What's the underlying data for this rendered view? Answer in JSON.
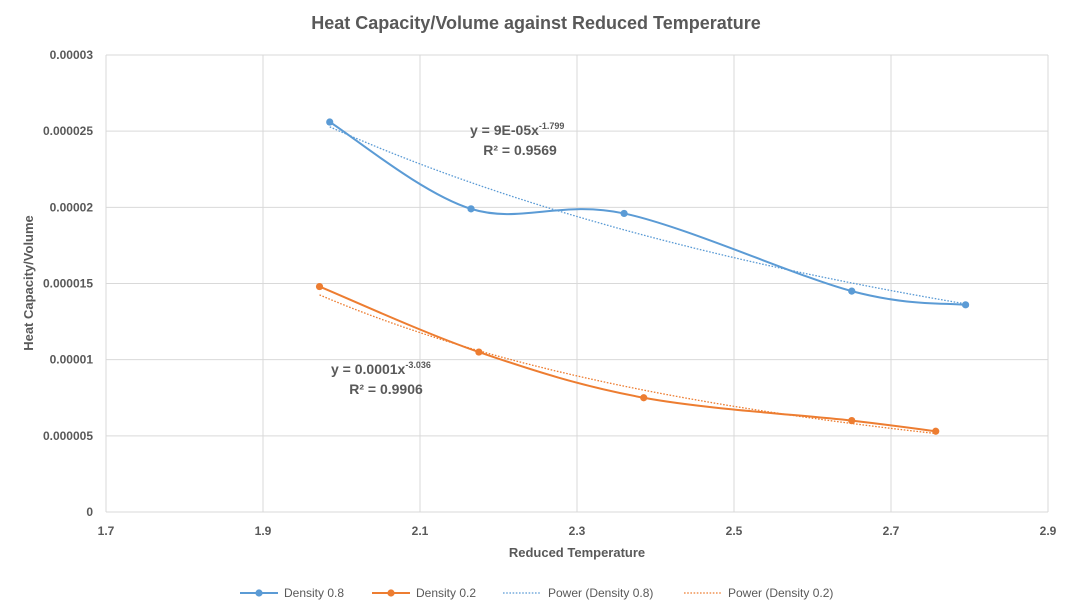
{
  "chart_data": {
    "type": "scatter",
    "title": "Heat Capacity/Volume against Reduced Temperature",
    "xlabel": "Reduced Temperature",
    "ylabel": "Heat Capacity/Volume",
    "xlim": [
      1.7,
      2.9
    ],
    "ylim": [
      0,
      3e-05
    ],
    "x_ticks": [
      1.7,
      1.9,
      2.1,
      2.3,
      2.5,
      2.7,
      2.9
    ],
    "x_tick_labels": [
      "1.7",
      "1.9",
      "2.1",
      "2.3",
      "2.5",
      "2.7",
      "2.9"
    ],
    "y_ticks": [
      0,
      5e-06,
      1e-05,
      1.5e-05,
      2e-05,
      2.5e-05,
      3e-05
    ],
    "y_tick_labels": [
      "0",
      "0.000005",
      "0.00001",
      "0.000015",
      "0.00002",
      "0.000025",
      "0.00003"
    ],
    "grid": true,
    "legend_position": "bottom",
    "series": [
      {
        "name": "Density 0.8",
        "color": "#5b9bd5",
        "smooth": true,
        "points": [
          [
            1.985,
            2.56e-05
          ],
          [
            2.165,
            1.99e-05
          ],
          [
            2.36,
            1.96e-05
          ],
          [
            2.65,
            1.45e-05
          ],
          [
            2.795,
            1.36e-05
          ]
        ]
      },
      {
        "name": "Density 0.2",
        "color": "#ed7d31",
        "smooth": true,
        "points": [
          [
            1.972,
            1.48e-05
          ],
          [
            2.175,
            1.05e-05
          ],
          [
            2.385,
            7.5e-06
          ],
          [
            2.65,
            6e-06
          ],
          [
            2.757,
            5.3e-06
          ]
        ]
      }
    ],
    "trendlines": [
      {
        "name": "Power (Density 0.8)",
        "color": "#5b9bd5",
        "type": "power",
        "coef": 8.68e-05,
        "exponent": -1.799,
        "x_range": [
          1.985,
          2.795
        ],
        "equation_base": "y = 9E-05x",
        "equation_exp": "-1.799",
        "r_squared": "R² = 0.9569"
      },
      {
        "name": "Power (Density 0.2)",
        "color": "#ed7d31",
        "type": "power",
        "coef": 0.000112,
        "exponent": -3.036,
        "x_range": [
          1.972,
          2.757
        ],
        "equation_base": "y = 0.0001x",
        "equation_exp": "-3.036",
        "r_squared": "R² = 0.9906"
      }
    ]
  }
}
